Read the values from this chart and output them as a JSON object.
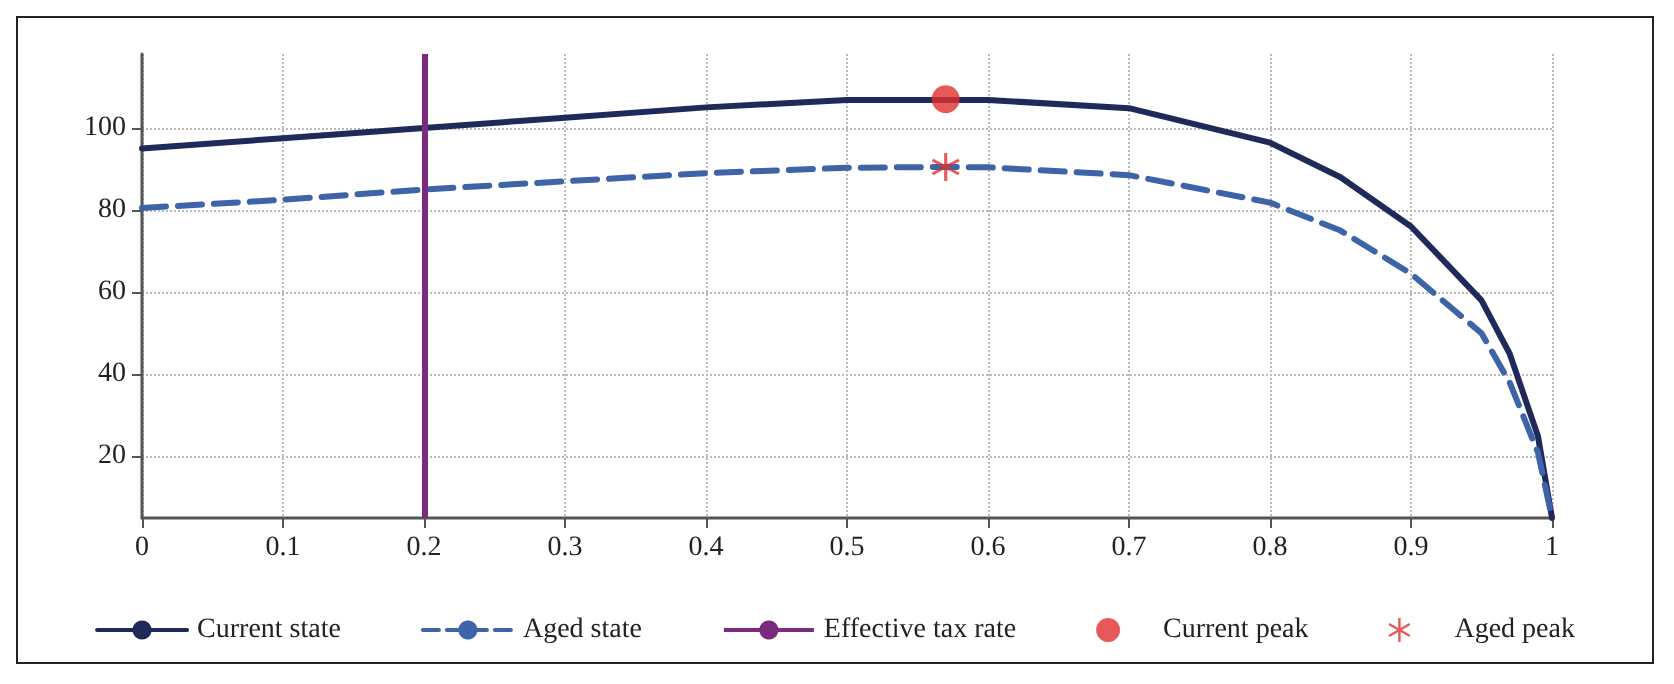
{
  "chart_data": {
    "type": "line",
    "xlim": [
      0,
      1
    ],
    "xticks": [
      0,
      0.1,
      0.2,
      0.3,
      0.4,
      0.5,
      0.6,
      0.7,
      0.8,
      0.9,
      1
    ],
    "ylim": [
      5,
      118
    ],
    "yticks": [
      20,
      40,
      60,
      80,
      100
    ],
    "grid": true,
    "legend": "bottom",
    "marker": "none",
    "series": [
      {
        "name": "Current state",
        "color": "#1f2a5a",
        "line_style": "solid",
        "x": [
          0,
          0.1,
          0.2,
          0.3,
          0.4,
          0.5,
          0.6,
          0.7,
          0.8,
          0.85,
          0.9,
          0.95,
          0.97,
          0.99,
          1
        ],
        "values": [
          95,
          97.5,
          100,
          102.5,
          105,
          106.8,
          106.8,
          104.8,
          96.4,
          88,
          76,
          58,
          45,
          25,
          5
        ]
      },
      {
        "name": "Aged state",
        "color": "#3d63a8",
        "line_style": "dashed",
        "x": [
          0,
          0.1,
          0.2,
          0.3,
          0.4,
          0.5,
          0.57,
          0.6,
          0.7,
          0.8,
          0.85,
          0.9,
          0.95,
          0.97,
          0.99,
          1
        ],
        "values": [
          80.5,
          82.5,
          85,
          87,
          89,
          90.3,
          90.5,
          90.4,
          88.5,
          81.8,
          75,
          64.5,
          50,
          38,
          21,
          5
        ]
      },
      {
        "name": "Current peak",
        "type": "scatter",
        "marker": "circle",
        "color": "#e0302e",
        "x": [
          0.57
        ],
        "values": [
          107
        ]
      },
      {
        "name": "Aged peak",
        "type": "scatter",
        "marker": "cross",
        "color": "#e0302e",
        "x": [
          0.57
        ],
        "values": [
          90.5
        ]
      }
    ],
    "ref_lines": [
      {
        "axis": "x",
        "value": 0.2,
        "label": "Effective tax rate",
        "color": "#7b2b7e",
        "line_style": "solid"
      }
    ]
  }
}
